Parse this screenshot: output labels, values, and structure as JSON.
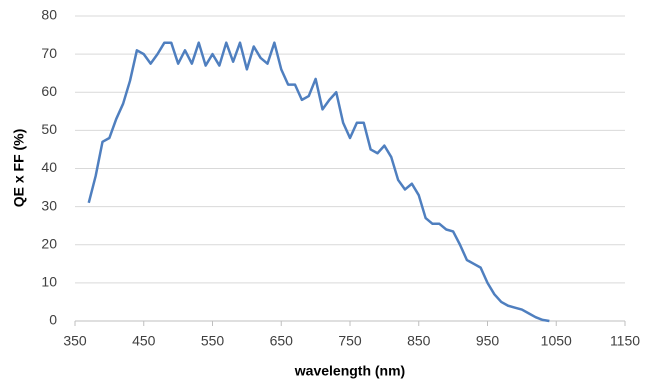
{
  "chart_data": {
    "type": "line",
    "x_label": "wavelength (nm)",
    "y_label": "QE x FF (%)",
    "x": [
      370,
      380,
      390,
      400,
      410,
      420,
      430,
      440,
      450,
      460,
      470,
      480,
      490,
      500,
      510,
      520,
      530,
      540,
      550,
      560,
      570,
      580,
      590,
      600,
      610,
      620,
      630,
      640,
      650,
      660,
      670,
      680,
      690,
      700,
      710,
      720,
      730,
      740,
      750,
      760,
      770,
      780,
      790,
      800,
      810,
      820,
      830,
      840,
      850,
      860,
      870,
      880,
      890,
      900,
      910,
      920,
      930,
      940,
      950,
      960,
      970,
      980,
      990,
      1000,
      1010,
      1020,
      1030,
      1040
    ],
    "series": [
      {
        "name": "QE x FF",
        "color": "#4f7fbf",
        "values": [
          31,
          38,
          47,
          48,
          53,
          57,
          63,
          71,
          70,
          67.5,
          70,
          73,
          73,
          67.5,
          71,
          67.5,
          73,
          67,
          70,
          67,
          73,
          68,
          73,
          66,
          72,
          69,
          67.5,
          73,
          66,
          62,
          62,
          58,
          59,
          63.5,
          55.5,
          58,
          60,
          52,
          48,
          52,
          52,
          45,
          44,
          46,
          43,
          37,
          34.5,
          36,
          33,
          27,
          25.5,
          25.5,
          24,
          23.5,
          20,
          16,
          15,
          14,
          10,
          7,
          5,
          4,
          3.5,
          3,
          2,
          1,
          0.3,
          0
        ]
      }
    ],
    "xlim": [
      350,
      1150
    ],
    "xticks": [
      350,
      450,
      550,
      650,
      750,
      850,
      950,
      1050,
      1150
    ],
    "ylim": [
      0,
      80
    ],
    "yticks": [
      0,
      10,
      20,
      30,
      40,
      50,
      60,
      70,
      80
    ],
    "grid": true
  }
}
